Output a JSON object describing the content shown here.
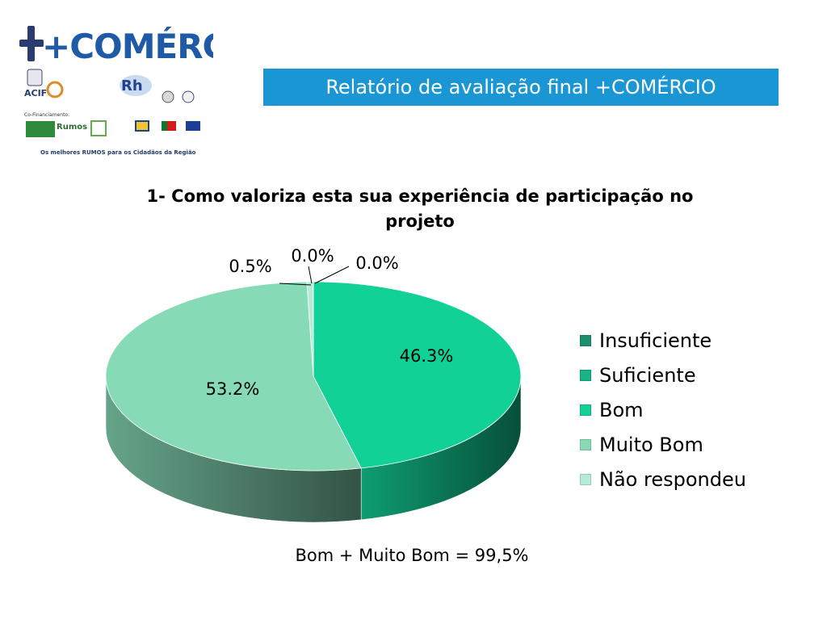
{
  "header": {
    "logo_text": "+COMÉRCIO",
    "banner_title": "Relatório de avaliação final +COMÉRCIO"
  },
  "partners": {
    "acif_label": "ACIF",
    "cofinancing_label": "Co-Financiamento:",
    "rumos_label": "Rumos",
    "tagline": "Os melhores RUMOS para os Cidadãos da Região"
  },
  "chart_data": {
    "type": "pie",
    "title": "1- Como valoriza esta sua experiência de participação no projeto",
    "categories": [
      "Insuficiente",
      "Suficiente",
      "Bom",
      "Muito Bom",
      "Não respondeu"
    ],
    "values": [
      0.0,
      0.0,
      46.3,
      53.2,
      0.5
    ],
    "data_labels": [
      "0.0%",
      "0.0%",
      "46.3%",
      "53.2%",
      "0.5%"
    ],
    "colors": [
      "#1a8e6e",
      "#16b487",
      "#12d196",
      "#86dbb6",
      "#b7ebd5"
    ],
    "legend_position": "right",
    "three_d": true
  },
  "footer_note": "Bom + Muito Bom = 99,5%"
}
